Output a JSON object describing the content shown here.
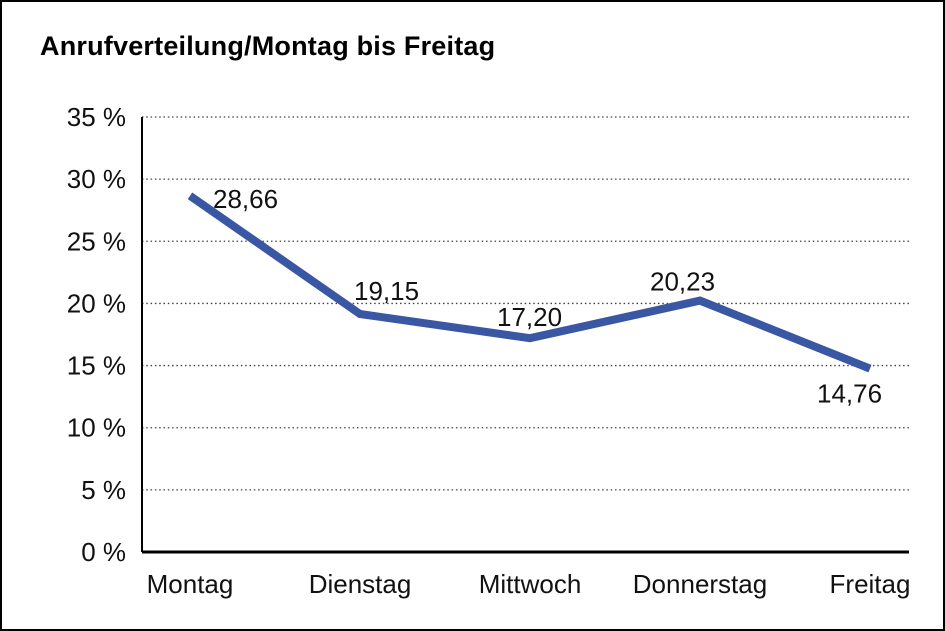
{
  "window": {
    "background_color": "#ffffff",
    "border_color": "#000000"
  },
  "chart_data": {
    "type": "line",
    "title": "Anrufverteilung/Montag bis Freitag",
    "categories": [
      "Montag",
      "Dienstag",
      "Mittwoch",
      "Donnerstag",
      "Freitag"
    ],
    "series": [
      {
        "name": "Anrufverteilung",
        "values": [
          28.66,
          19.15,
          17.2,
          20.23,
          14.76
        ]
      }
    ],
    "point_labels": [
      "28,66",
      "19,15",
      "17,20",
      "20,23",
      "14,76"
    ],
    "y_tick_labels": [
      "0 %",
      "5 %",
      "10 %",
      "15 %",
      "20 %",
      "25 %",
      "30 %",
      "35 %"
    ],
    "xlabel": "",
    "ylabel": "",
    "ylim": [
      0,
      35
    ],
    "y_step": 5,
    "grid": "horizontal-dotted",
    "legend_position": "none",
    "line_color": "#3A57A4",
    "axis_color": "#000000",
    "gridline_color": "#404040"
  }
}
